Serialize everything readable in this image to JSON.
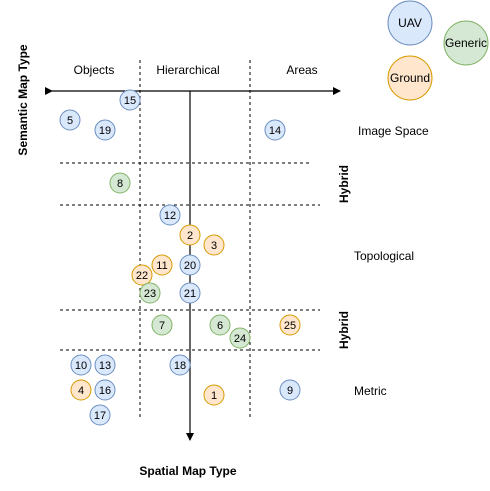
{
  "axes": {
    "vertical_title": "Semantic Map Type",
    "horizontal_title": "Spatial Map Type"
  },
  "columns": {
    "objects": "Objects",
    "hierarchical": "Hierarchical",
    "areas": "Areas"
  },
  "rows": {
    "image_space": "Image Space",
    "topological": "Topological",
    "metric": "Metric",
    "hybrid_upper": "Hybrid",
    "hybrid_lower": "Hybrid"
  },
  "legend": {
    "uav": "UAV",
    "generic": "Generic",
    "ground": "Ground"
  },
  "colors": {
    "uav_fill": "#dae8fc",
    "uav_stroke": "#6c8ebf",
    "generic_fill": "#d5e8d4",
    "generic_stroke": "#82b366",
    "ground_fill": "#ffe6cc",
    "ground_stroke": "#d79b00"
  },
  "nodes": [
    {
      "label": "15",
      "kind": "uav"
    },
    {
      "label": "5",
      "kind": "uav"
    },
    {
      "label": "19",
      "kind": "uav"
    },
    {
      "label": "14",
      "kind": "uav"
    },
    {
      "label": "8",
      "kind": "generic"
    },
    {
      "label": "12",
      "kind": "uav"
    },
    {
      "label": "2",
      "kind": "ground"
    },
    {
      "label": "3",
      "kind": "ground"
    },
    {
      "label": "11",
      "kind": "ground"
    },
    {
      "label": "20",
      "kind": "uav"
    },
    {
      "label": "22",
      "kind": "ground"
    },
    {
      "label": "23",
      "kind": "generic"
    },
    {
      "label": "21",
      "kind": "uav"
    },
    {
      "label": "7",
      "kind": "generic"
    },
    {
      "label": "6",
      "kind": "generic"
    },
    {
      "label": "24",
      "kind": "generic"
    },
    {
      "label": "25",
      "kind": "ground"
    },
    {
      "label": "10",
      "kind": "uav"
    },
    {
      "label": "13",
      "kind": "uav"
    },
    {
      "label": "18",
      "kind": "uav"
    },
    {
      "label": "4",
      "kind": "ground"
    },
    {
      "label": "16",
      "kind": "uav"
    },
    {
      "label": "1",
      "kind": "ground"
    },
    {
      "label": "9",
      "kind": "uav"
    },
    {
      "label": "17",
      "kind": "uav"
    }
  ]
}
